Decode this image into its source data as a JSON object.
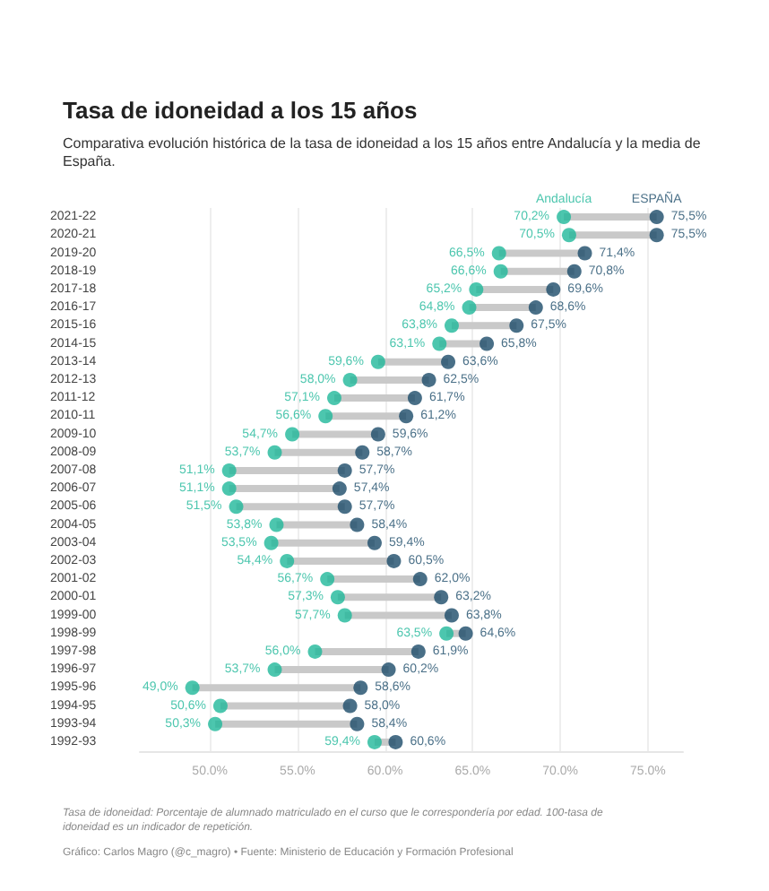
{
  "chart_data": {
    "type": "scatter",
    "title": "Tasa de idoneidad a los 15 años",
    "subtitle": "Comparativa evolución histórica de la tasa de idoneidad a los 15 años entre Andalucía y la media de España.",
    "categories": [
      "2021-22",
      "2020-21",
      "2019-20",
      "2018-19",
      "2017-18",
      "2016-17",
      "2015-16",
      "2014-15",
      "2013-14",
      "2012-13",
      "2011-12",
      "2010-11",
      "2009-10",
      "2008-09",
      "2007-08",
      "2006-07",
      "2005-06",
      "2004-05",
      "2003-04",
      "2002-03",
      "2001-02",
      "2000-01",
      "1999-00",
      "1998-99",
      "1997-98",
      "1996-97",
      "1995-96",
      "1994-95",
      "1993-94",
      "1992-93"
    ],
    "series": [
      {
        "name": "Andalucía",
        "color": "#1fb89a",
        "values": [
          70.2,
          70.5,
          66.5,
          66.6,
          65.2,
          64.8,
          63.8,
          63.1,
          59.6,
          58.0,
          57.1,
          56.6,
          54.7,
          53.7,
          51.1,
          51.1,
          51.5,
          53.8,
          53.5,
          54.4,
          56.7,
          57.3,
          57.7,
          63.5,
          56.0,
          53.7,
          49.0,
          50.6,
          50.3,
          59.4
        ],
        "value_labels": [
          "70,2%",
          "70,5%",
          "66,5%",
          "66,6%",
          "65,2%",
          "64,8%",
          "63,8%",
          "63,1%",
          "59,6%",
          "58,0%",
          "57,1%",
          "56,6%",
          "54,7%",
          "53,7%",
          "51,1%",
          "51,1%",
          "51,5%",
          "53,8%",
          "53,5%",
          "54,4%",
          "56,7%",
          "57,3%",
          "57,7%",
          "63,5%",
          "56,0%",
          "53,7%",
          "49,0%",
          "50,6%",
          "50,3%",
          "59,4%"
        ]
      },
      {
        "name": "ESPAÑA",
        "color": "#1b4b69",
        "values": [
          75.5,
          75.5,
          71.4,
          70.8,
          69.6,
          68.6,
          67.5,
          65.8,
          63.6,
          62.5,
          61.7,
          61.2,
          59.6,
          58.7,
          57.7,
          57.4,
          57.7,
          58.4,
          59.4,
          60.5,
          62.0,
          63.2,
          63.8,
          64.6,
          61.9,
          60.2,
          58.6,
          58.0,
          58.4,
          60.6
        ],
        "value_labels": [
          "75,5%",
          "75,5%",
          "71,4%",
          "70,8%",
          "69,6%",
          "68,6%",
          "67,5%",
          "65,8%",
          "63,6%",
          "62,5%",
          "61,7%",
          "61,2%",
          "59,6%",
          "58,7%",
          "57,7%",
          "57,4%",
          "57,7%",
          "58,4%",
          "59,4%",
          "60,5%",
          "62,0%",
          "63,2%",
          "63,8%",
          "64,6%",
          "61,9%",
          "60,2%",
          "58,6%",
          "58,0%",
          "58,4%",
          "60,6%"
        ]
      }
    ],
    "xlim": [
      46,
      77
    ],
    "xticks": [
      {
        "value": 50,
        "label": "50.0%"
      },
      {
        "value": 55,
        "label": "55.0%"
      },
      {
        "value": 60,
        "label": "60.0%"
      },
      {
        "value": 65,
        "label": "65.0%"
      },
      {
        "value": 70,
        "label": "70.0%"
      },
      {
        "value": 75,
        "label": "75.0%"
      }
    ],
    "grid": "x",
    "marker": "circle",
    "legend": false,
    "orientation": "horizontal",
    "annotations": [
      "Tasa de idoneidad: Porcentaje de alumnado matriculado en el curso que le correspondería por edad. 100-tasa de idoneidad es un indicador de repetición.",
      "Gráfico: Carlos Magro (@c_magro) • Fuente: Ministerio de Educación y Formación Profesional"
    ]
  }
}
